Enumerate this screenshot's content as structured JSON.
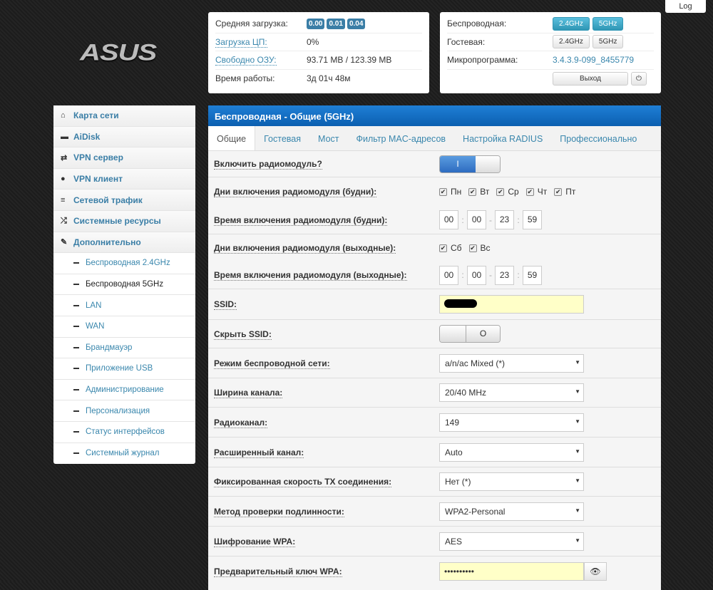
{
  "header": {
    "logo": "ASUS",
    "log_button": "Log"
  },
  "status": {
    "load_label": "Средняя загрузка:",
    "load_values": [
      "0.00",
      "0.01",
      "0.04"
    ],
    "cpu_label": "Загрузка ЦП:",
    "cpu_value": "0%",
    "ram_label": "Свободно ОЗУ:",
    "ram_value": "93.71 MB / 123.39 MB",
    "uptime_label": "Время работы:",
    "uptime_value": "3д 01ч 48м"
  },
  "quick": {
    "wireless_label": "Беспроводная:",
    "guest_label": "Гостевая:",
    "band24": "2.4GHz",
    "band5": "5GHz",
    "firmware_label": "Микропрограмма:",
    "firmware_value": "3.4.3.9-099_8455779",
    "logout": "Выход"
  },
  "sidebar": {
    "items": [
      "Карта сети",
      "AiDisk",
      "VPN сервер",
      "VPN клиент",
      "Сетевой трафик",
      "Системные ресурсы",
      "Дополнительно"
    ],
    "subitems": [
      "Беспроводная 2.4GHz",
      "Беспроводная 5GHz",
      "LAN",
      "WAN",
      "Брандмауэр",
      "Приложение USB",
      "Администрирование",
      "Персонализация",
      "Статус интерфейсов",
      "Системный журнал"
    ]
  },
  "main": {
    "title": "Беспроводная - Общие (5GHz)",
    "tabs": [
      "Общие",
      "Гостевая",
      "Мост",
      "Фильтр MAC-адресов",
      "Настройка RADIUS",
      "Профессионально"
    ],
    "radio_label": "Включить радиомодуль?",
    "radio_on": "I",
    "weekdays_label": "Дни включения радиомодуля (будни):",
    "weekdays": [
      "Пн",
      "Вт",
      "Ср",
      "Чт",
      "Пт"
    ],
    "weekdays_time_label": "Время включения радиомодуля (будни):",
    "weekend_label": "Дни включения радиомодуля (выходные):",
    "weekend": [
      "Сб",
      "Вс"
    ],
    "weekend_time_label": "Время включения радиомодуля (выходные):",
    "time": [
      "00",
      "00",
      "23",
      "59"
    ],
    "ssid_label": "SSID:",
    "ssid_value": "",
    "hide_label": "Скрыть SSID:",
    "hide_off": "O",
    "mode_label": "Режим беспроводной сети:",
    "mode_value": "a/n/ac Mixed (*)",
    "width_label": "Ширина канала:",
    "width_value": "20/40 MHz",
    "channel_label": "Радиоканал:",
    "channel_value": "149",
    "ext_label": "Расширенный канал:",
    "ext_value": "Auto",
    "tx_label": "Фиксированная скорость TX соединения:",
    "tx_value": "Нет (*)",
    "auth_label": "Метод проверки подлинности:",
    "auth_value": "WPA2-Personal",
    "enc_label": "Шифрование WPA:",
    "enc_value": "AES",
    "psk_label": "Предварительный ключ WPA:",
    "psk_value": "••••••••••"
  },
  "colors": {
    "accent": "#3a87ad",
    "header": "#1670c8",
    "input_highlight": "#ffffc8"
  }
}
